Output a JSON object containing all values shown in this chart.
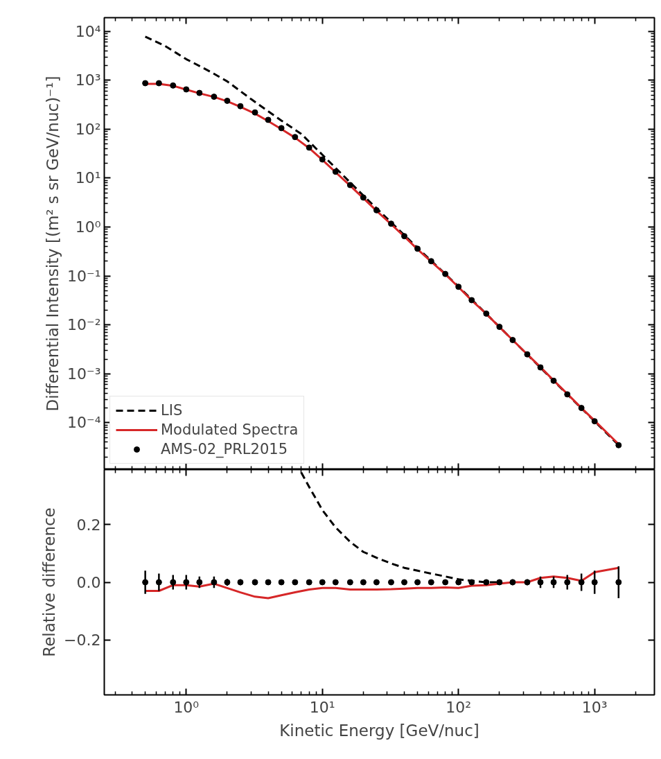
{
  "chart_data": [
    {
      "type": "line",
      "ylabel": "Differential Intensity [(m² s sr GeV/nuc)⁻¹]",
      "log": "xy",
      "grid": false,
      "legend": "bottom left",
      "tick_labels": "y",
      "xlim": [
        0.25,
        2750
      ],
      "ylim": [
        1.1e-05,
        19000
      ],
      "xticks": [
        {
          "value": 1,
          "label": null
        },
        {
          "value": 10,
          "label": null
        },
        {
          "value": 100,
          "label": null
        },
        {
          "value": 1000,
          "label": null
        }
      ],
      "yticks": [
        {
          "value": 0.0001,
          "label": "10⁻⁴"
        },
        {
          "value": 0.001,
          "label": "10⁻³"
        },
        {
          "value": 0.01,
          "label": "10⁻²"
        },
        {
          "value": 0.1,
          "label": "10⁻¹"
        },
        {
          "value": 1,
          "label": "10⁰"
        },
        {
          "value": 10,
          "label": "10¹"
        },
        {
          "value": 100,
          "label": "10²"
        },
        {
          "value": 1000,
          "label": "10³"
        },
        {
          "value": 10000,
          "label": "10⁴"
        }
      ],
      "series": [
        {
          "name": "LIS",
          "line_style": "dashed",
          "color": "#000000",
          "x": [
            0.5,
            0.7,
            1,
            1.5,
            2,
            3,
            5,
            7,
            10,
            20,
            50,
            100,
            200,
            500,
            1000,
            1500
          ],
          "values": [
            7800,
            5000,
            2700,
            1500,
            950,
            410,
            150,
            80,
            30,
            4.4,
            0.375,
            0.061,
            0.0091,
            0.00072,
            0.000107,
            3.47e-05
          ]
        },
        {
          "name": "Modulated Spectra",
          "line_style": "solid",
          "color": "#d62728",
          "x": [
            0.5,
            0.63,
            0.8,
            1.0,
            1.25,
            1.6,
            2.0,
            2.5,
            3.2,
            4,
            5,
            6.3,
            8,
            10,
            12.5,
            16,
            20,
            25,
            32,
            40,
            50,
            63,
            80,
            100,
            125,
            160,
            200,
            250,
            320,
            400,
            500,
            630,
            800,
            1000,
            1500
          ],
          "values": [
            845,
            845,
            770,
            645,
            540,
            455,
            372,
            285,
            208,
            146,
            100,
            67,
            41,
            23.5,
            13.2,
            7.0,
            3.9,
            2.15,
            1.14,
            0.64,
            0.35,
            0.196,
            0.108,
            0.059,
            0.0316,
            0.0168,
            0.009,
            0.0049,
            0.0025,
            0.00137,
            0.00073,
            0.00039,
            0.0002,
            0.00011,
            3.65e-05
          ]
        },
        {
          "name": "AMS-02_PRL2015",
          "type": "scatter",
          "marker": "circle",
          "color": "#000000",
          "x": [
            0.5,
            0.63,
            0.8,
            1.0,
            1.25,
            1.6,
            2.0,
            2.5,
            3.2,
            4,
            5,
            6.3,
            8,
            10,
            12.5,
            16,
            20,
            25,
            32,
            40,
            50,
            63,
            80,
            100,
            125,
            160,
            200,
            250,
            320,
            400,
            500,
            630,
            800,
            1000,
            1500
          ],
          "values": [
            870,
            870,
            780,
            650,
            550,
            460,
            380,
            295,
            220,
            155,
            105,
            69,
            42,
            24,
            13.5,
            7.2,
            4.0,
            2.2,
            1.17,
            0.65,
            0.36,
            0.2,
            0.11,
            0.06,
            0.032,
            0.017,
            0.0091,
            0.0049,
            0.0025,
            0.00135,
            0.00072,
            0.00038,
            0.0002,
            0.000107,
            3.47e-05
          ]
        }
      ]
    },
    {
      "type": "line",
      "xlabel": "Kinetic Energy [GeV/nuc]",
      "ylabel": "Relative difference",
      "log": "x",
      "grid": false,
      "xlim": [
        0.25,
        2750
      ],
      "ylim": [
        -0.39,
        0.39
      ],
      "xticks": [
        {
          "value": 1,
          "label": "10⁰"
        },
        {
          "value": 10,
          "label": "10¹"
        },
        {
          "value": 100,
          "label": "10²"
        },
        {
          "value": 1000,
          "label": "10³"
        }
      ],
      "yticks": [
        {
          "value": -0.2,
          "label": "−0.2"
        },
        {
          "value": 0.0,
          "label": "0.0"
        },
        {
          "value": 0.2,
          "label": "0.2"
        }
      ],
      "series": [
        {
          "line_style": "dashed",
          "color": "#000000",
          "x": [
            7,
            8,
            10,
            12.5,
            16,
            20,
            25,
            32,
            40,
            50,
            63,
            80,
            100,
            125,
            160,
            200
          ],
          "values": [
            0.38,
            0.33,
            0.25,
            0.19,
            0.14,
            0.105,
            0.085,
            0.065,
            0.05,
            0.04,
            0.03,
            0.02,
            0.01,
            0.005,
            0.0,
            0.0
          ]
        },
        {
          "line_style": "solid",
          "color": "#d62728",
          "x": [
            0.5,
            0.63,
            0.8,
            1.0,
            1.25,
            1.6,
            2.0,
            2.5,
            3.2,
            4,
            5,
            6.3,
            8,
            10,
            12.5,
            16,
            20,
            25,
            32,
            40,
            50,
            63,
            80,
            100,
            125,
            160,
            200,
            250,
            320,
            400,
            500,
            630,
            800,
            1000,
            1500
          ],
          "values": [
            -0.03,
            -0.03,
            -0.01,
            -0.01,
            -0.015,
            -0.005,
            -0.02,
            -0.035,
            -0.05,
            -0.055,
            -0.045,
            -0.035,
            -0.025,
            -0.02,
            -0.02,
            -0.025,
            -0.025,
            -0.025,
            -0.024,
            -0.022,
            -0.02,
            -0.02,
            -0.018,
            -0.02,
            -0.012,
            -0.01,
            -0.005,
            0.0,
            0.0,
            0.015,
            0.02,
            0.015,
            0.005,
            0.035,
            0.05
          ]
        },
        {
          "type": "scatter",
          "marker": "circle",
          "color": "#000000",
          "x": [
            0.5,
            0.63,
            0.8,
            1.0,
            1.25,
            1.6,
            2.0,
            2.5,
            3.2,
            4,
            5,
            6.3,
            8,
            10,
            12.5,
            16,
            20,
            25,
            32,
            40,
            50,
            63,
            80,
            100,
            125,
            160,
            200,
            250,
            320,
            400,
            500,
            630,
            800,
            1000,
            1500
          ],
          "values": [
            0,
            0,
            0,
            0,
            0,
            0,
            0,
            0,
            0,
            0,
            0,
            0,
            0,
            0,
            0,
            0,
            0,
            0,
            0,
            0,
            0,
            0,
            0,
            0,
            0,
            0,
            0,
            0,
            0,
            0,
            0,
            0,
            0,
            0,
            0
          ],
          "errors": [
            0.04,
            0.03,
            0.025,
            0.025,
            0.02,
            0.02,
            0.012,
            0.01,
            0.01,
            0.008,
            0.008,
            0.006,
            0.006,
            0.005,
            0.005,
            0.005,
            0.005,
            0.005,
            0.005,
            0.005,
            0.005,
            0.005,
            0.005,
            0.005,
            0.006,
            0.006,
            0.008,
            0.01,
            0.01,
            0.02,
            0.02,
            0.025,
            0.03,
            0.04,
            0.055
          ]
        }
      ]
    }
  ]
}
